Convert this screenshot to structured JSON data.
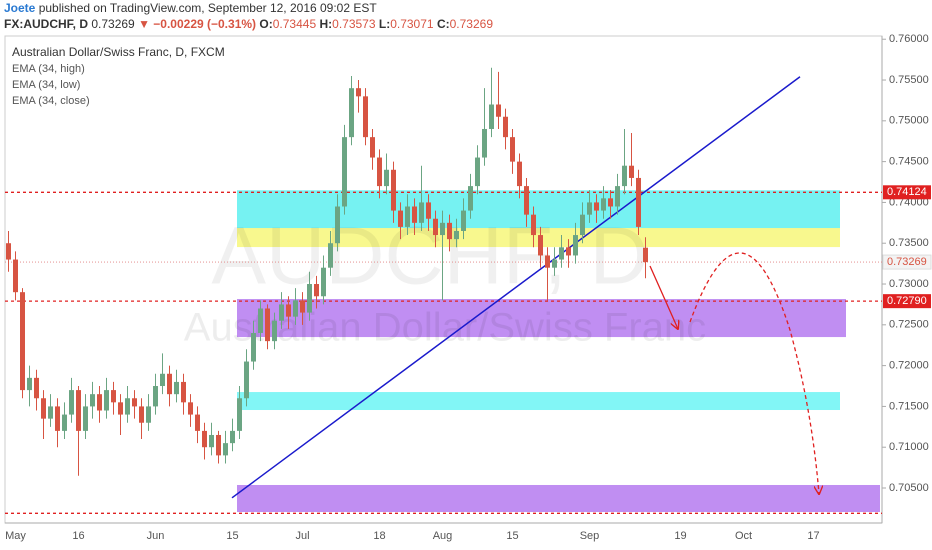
{
  "header": {
    "author": "Joete",
    "published": "published on TradingView.com, September 12, 2016 09:02 EST",
    "symbol": "FX:AUDCHF, D",
    "change": "▼ −0.00229 (−0.31%)",
    "o_label": "O:",
    "h_label": "H:",
    "l_label": "L:",
    "c_label": "C:"
  },
  "chart_data": {
    "type": "candlestick",
    "title": "Australian Dollar/Swiss Franc, D, FXCM",
    "watermark": "AUDCHF, D",
    "watermark_name": "Australian Dollar/Swiss Franc",
    "indicators": [
      "EMA (34, high)",
      "EMA (34, low)",
      "EMA (34, close)"
    ],
    "up_color": "#6ba583",
    "down_color": "#d75442",
    "ylim": [
      0.70108,
      0.76015
    ],
    "yticks": [
      {
        "value": 0.705,
        "label": "0.70500"
      },
      {
        "value": 0.71,
        "label": "0.71000"
      },
      {
        "value": 0.715,
        "label": "0.71500"
      },
      {
        "value": 0.72,
        "label": "0.72000"
      },
      {
        "value": 0.725,
        "label": "0.72500"
      },
      {
        "value": 0.73,
        "label": "0.73000"
      },
      {
        "value": 0.735,
        "label": "0.73500"
      },
      {
        "value": 0.74,
        "label": "0.74000"
      },
      {
        "value": 0.745,
        "label": "0.74500"
      },
      {
        "value": 0.75,
        "label": "0.75000"
      },
      {
        "value": 0.755,
        "label": "0.75500"
      },
      {
        "value": 0.76,
        "label": "0.76000"
      }
    ],
    "categories": [
      null,
      "May",
      null,
      null,
      null,
      null,
      null,
      null,
      null,
      null,
      "16",
      null,
      null,
      null,
      null,
      null,
      null,
      null,
      null,
      null,
      null,
      "Jun",
      null,
      null,
      null,
      null,
      null,
      null,
      null,
      null,
      null,
      null,
      "15",
      null,
      null,
      null,
      null,
      null,
      null,
      null,
      null,
      null,
      "Jul",
      null,
      null,
      null,
      null,
      null,
      null,
      null,
      null,
      null,
      null,
      "18",
      null,
      null,
      null,
      null,
      null,
      null,
      null,
      null,
      "Aug",
      null,
      null,
      null,
      null,
      null,
      null,
      null,
      null,
      null,
      "15",
      null,
      null,
      null,
      null,
      null,
      null,
      null,
      null,
      null,
      null,
      "Sep",
      null,
      null,
      null,
      null,
      null,
      null,
      null,
      null,
      null,
      null,
      null,
      null,
      "19",
      null,
      null,
      null,
      null,
      null,
      null,
      null,
      null,
      "Oct",
      null,
      null,
      null,
      null,
      null,
      null,
      null,
      null,
      null,
      "17",
      null,
      null,
      null,
      null,
      null,
      null,
      null,
      null,
      null
    ],
    "ohlc": [
      [
        0.735,
        0.7365,
        0.7315,
        0.733
      ],
      [
        0.733,
        0.734,
        0.728,
        0.729
      ],
      [
        0.729,
        0.7295,
        0.716,
        0.717
      ],
      [
        0.717,
        0.72,
        0.715,
        0.7185
      ],
      [
        0.7185,
        0.7195,
        0.7145,
        0.716
      ],
      [
        0.716,
        0.717,
        0.711,
        0.7135
      ],
      [
        0.7135,
        0.7165,
        0.7125,
        0.715
      ],
      [
        0.715,
        0.716,
        0.71,
        0.712
      ],
      [
        0.712,
        0.7155,
        0.711,
        0.714
      ],
      [
        0.714,
        0.7185,
        0.713,
        0.717
      ],
      [
        0.717,
        0.7175,
        0.7065,
        0.712
      ],
      [
        0.712,
        0.7165,
        0.711,
        0.715
      ],
      [
        0.715,
        0.718,
        0.7135,
        0.7165
      ],
      [
        0.7165,
        0.7175,
        0.713,
        0.7145
      ],
      [
        0.7145,
        0.7185,
        0.7135,
        0.717
      ],
      [
        0.717,
        0.718,
        0.714,
        0.7155
      ],
      [
        0.7155,
        0.7165,
        0.7115,
        0.714
      ],
      [
        0.714,
        0.7175,
        0.713,
        0.716
      ],
      [
        0.716,
        0.717,
        0.7135,
        0.715
      ],
      [
        0.715,
        0.716,
        0.711,
        0.713
      ],
      [
        0.713,
        0.7165,
        0.712,
        0.715
      ],
      [
        0.715,
        0.719,
        0.714,
        0.7175
      ],
      [
        0.7175,
        0.7215,
        0.7165,
        0.719
      ],
      [
        0.719,
        0.72,
        0.715,
        0.7165
      ],
      [
        0.7165,
        0.7195,
        0.7155,
        0.718
      ],
      [
        0.718,
        0.719,
        0.714,
        0.7155
      ],
      [
        0.7155,
        0.7165,
        0.7125,
        0.714
      ],
      [
        0.714,
        0.715,
        0.7105,
        0.712
      ],
      [
        0.712,
        0.713,
        0.7085,
        0.71
      ],
      [
        0.71,
        0.713,
        0.709,
        0.7115
      ],
      [
        0.7115,
        0.712,
        0.708,
        0.709
      ],
      [
        0.709,
        0.712,
        0.708,
        0.7105
      ],
      [
        0.7105,
        0.7135,
        0.7095,
        0.712
      ],
      [
        0.712,
        0.7175,
        0.711,
        0.716
      ],
      [
        0.716,
        0.722,
        0.715,
        0.7205
      ],
      [
        0.7205,
        0.7255,
        0.7195,
        0.724
      ],
      [
        0.724,
        0.728,
        0.723,
        0.727
      ],
      [
        0.727,
        0.7275,
        0.722,
        0.723
      ],
      [
        0.723,
        0.7265,
        0.722,
        0.7255
      ],
      [
        0.7255,
        0.729,
        0.7245,
        0.7275
      ],
      [
        0.7275,
        0.7285,
        0.7245,
        0.726
      ],
      [
        0.726,
        0.7295,
        0.725,
        0.728
      ],
      [
        0.728,
        0.729,
        0.725,
        0.7265
      ],
      [
        0.7265,
        0.7315,
        0.7255,
        0.73
      ],
      [
        0.73,
        0.731,
        0.727,
        0.7285
      ],
      [
        0.7285,
        0.7335,
        0.7275,
        0.732
      ],
      [
        0.732,
        0.7365,
        0.731,
        0.735
      ],
      [
        0.735,
        0.741,
        0.734,
        0.7395
      ],
      [
        0.7395,
        0.7495,
        0.7385,
        0.748
      ],
      [
        0.748,
        0.7555,
        0.747,
        0.754
      ],
      [
        0.754,
        0.755,
        0.751,
        0.753
      ],
      [
        0.753,
        0.754,
        0.747,
        0.748
      ],
      [
        0.748,
        0.749,
        0.744,
        0.7455
      ],
      [
        0.7455,
        0.7465,
        0.7405,
        0.742
      ],
      [
        0.742,
        0.746,
        0.741,
        0.744
      ],
      [
        0.744,
        0.745,
        0.7375,
        0.739
      ],
      [
        0.739,
        0.74,
        0.7355,
        0.737
      ],
      [
        0.737,
        0.741,
        0.736,
        0.7395
      ],
      [
        0.7395,
        0.7405,
        0.736,
        0.7375
      ],
      [
        0.7375,
        0.7445,
        0.7365,
        0.74
      ],
      [
        0.74,
        0.741,
        0.7365,
        0.738
      ],
      [
        0.738,
        0.739,
        0.7345,
        0.736
      ],
      [
        0.736,
        0.739,
        0.728,
        0.7375
      ],
      [
        0.7375,
        0.7385,
        0.734,
        0.7355
      ],
      [
        0.7355,
        0.738,
        0.7345,
        0.7365
      ],
      [
        0.7365,
        0.7405,
        0.7355,
        0.739
      ],
      [
        0.739,
        0.7435,
        0.738,
        0.742
      ],
      [
        0.742,
        0.747,
        0.741,
        0.7455
      ],
      [
        0.7455,
        0.754,
        0.7445,
        0.749
      ],
      [
        0.749,
        0.7565,
        0.748,
        0.752
      ],
      [
        0.752,
        0.756,
        0.749,
        0.7505
      ],
      [
        0.7505,
        0.7515,
        0.7465,
        0.748
      ],
      [
        0.748,
        0.749,
        0.7435,
        0.745
      ],
      [
        0.745,
        0.746,
        0.7405,
        0.742
      ],
      [
        0.742,
        0.743,
        0.737,
        0.7385
      ],
      [
        0.7385,
        0.7395,
        0.7345,
        0.736
      ],
      [
        0.736,
        0.737,
        0.732,
        0.7335
      ],
      [
        0.7335,
        0.7345,
        0.728,
        0.732
      ],
      [
        0.732,
        0.7345,
        0.731,
        0.733
      ],
      [
        0.733,
        0.736,
        0.732,
        0.7345
      ],
      [
        0.7345,
        0.7355,
        0.732,
        0.7335
      ],
      [
        0.7335,
        0.7375,
        0.7325,
        0.736
      ],
      [
        0.736,
        0.74,
        0.735,
        0.7385
      ],
      [
        0.7385,
        0.7415,
        0.7375,
        0.74
      ],
      [
        0.74,
        0.741,
        0.7375,
        0.739
      ],
      [
        0.739,
        0.742,
        0.738,
        0.7405
      ],
      [
        0.7405,
        0.7415,
        0.738,
        0.7395
      ],
      [
        0.7395,
        0.7435,
        0.7385,
        0.742
      ],
      [
        0.742,
        0.749,
        0.741,
        0.7445
      ],
      [
        0.7445,
        0.7485,
        0.742,
        0.743
      ],
      [
        0.743,
        0.744,
        0.736,
        0.737
      ],
      [
        0.73445,
        0.73573,
        0.73071,
        0.73269
      ],
      null,
      null,
      null,
      null,
      null,
      null,
      null,
      null,
      null,
      null,
      null,
      null,
      null,
      null,
      null,
      null,
      null,
      null,
      null,
      null,
      null,
      null,
      null,
      null,
      null,
      null,
      null,
      null,
      null,
      null,
      null,
      null,
      null
    ],
    "levels": [
      {
        "value": 0.74124,
        "color": "#e02020"
      },
      {
        "value": 0.7279,
        "label": "0.72790",
        "color": "#e02020"
      },
      {
        "value": 0.7019,
        "color": "#e02020"
      }
    ],
    "level_labels": [
      "0.74124",
      null,
      null
    ],
    "zones": [
      {
        "low": 0.73684,
        "high": 0.74149,
        "color": "#5ef0f0"
      },
      {
        "low": 0.73453,
        "high": 0.73686,
        "color": "#f7f77a"
      },
      {
        "low": 0.7235,
        "high": 0.72816,
        "color": "#b57af0"
      },
      {
        "low": 0.71456,
        "high": 0.71676,
        "color": "#6cf5f5"
      },
      {
        "low": 0.70206,
        "high": 0.70537,
        "color": "#b57af0"
      }
    ],
    "trend_line": {
      "values": [
        0.7038,
        0.7554
      ],
      "color": "#1a1acc"
    }
  }
}
